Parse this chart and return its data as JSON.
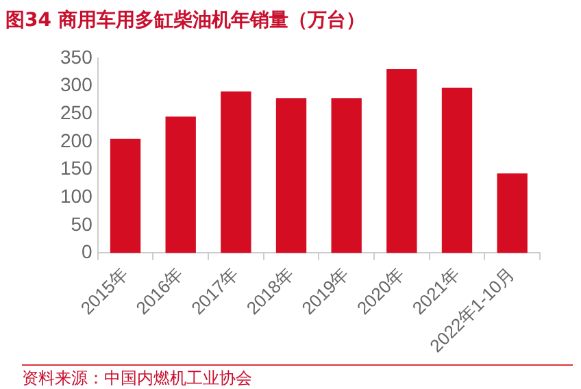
{
  "chart_data": {
    "type": "bar",
    "title": "图34  商用车用多缸柴油机年销量（万台）",
    "categories": [
      "2015年",
      "2016年",
      "2017年",
      "2018年",
      "2019年",
      "2020年",
      "2021年",
      "2022年1-10月"
    ],
    "values": [
      205,
      245,
      290,
      278,
      278,
      330,
      297,
      143
    ],
    "color": "#d50d23",
    "ylim": [
      0,
      350
    ],
    "yticks": [
      0,
      50,
      100,
      150,
      200,
      250,
      300,
      350
    ],
    "grid": false,
    "legend": false,
    "annotations": [
      "资料来源：中国内燃机工业协会"
    ]
  }
}
